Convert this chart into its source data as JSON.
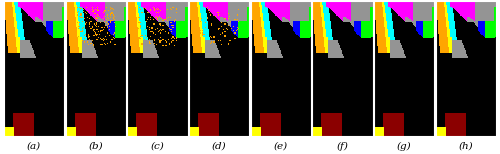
{
  "labels": [
    "(a)",
    "(b)",
    "(c)",
    "(d)",
    "(e)",
    "(f)",
    "(g)",
    "(h)"
  ],
  "n_panels": 8,
  "fig_width": 5.0,
  "fig_height": 1.54,
  "dpi": 100,
  "label_color": "black",
  "label_fontsize": 7.5
}
